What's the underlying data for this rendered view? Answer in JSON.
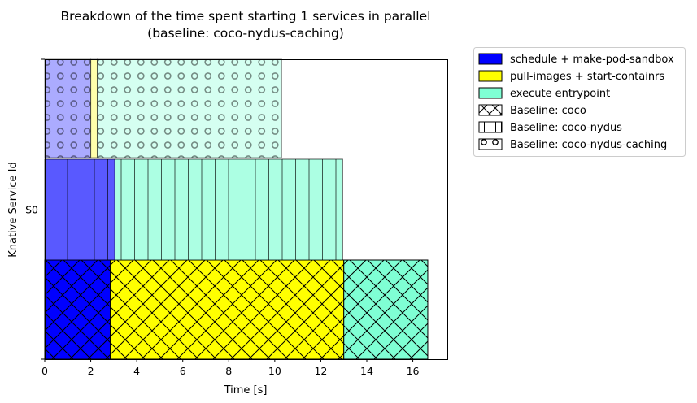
{
  "chart_data": {
    "type": "bar",
    "orientation": "horizontal",
    "title": "Breakdown of the time spent starting 1 services in parallel",
    "subtitle": "(baseline: coco-nydus-caching)",
    "xlabel": "Time [s]",
    "ylabel": "Knative Service Id",
    "xlim": [
      0,
      17.5
    ],
    "xticks": [
      "0",
      "2",
      "4",
      "6",
      "8",
      "10",
      "12",
      "14",
      "16"
    ],
    "yticks": [
      "S0"
    ],
    "grid": false,
    "legend_position": "outside-top-right",
    "legend": [
      {
        "label": "schedule + make-pod-sandbox",
        "kind": "color",
        "color": "#0000ff"
      },
      {
        "label": "pull-images + start-containrs",
        "kind": "color",
        "color": "#ffff00"
      },
      {
        "label": "execute entrypoint",
        "kind": "color",
        "color": "#7fffd4"
      },
      {
        "label": "Baseline: coco",
        "kind": "hatch",
        "hatch": "cross"
      },
      {
        "label": "Baseline: coco-nydus",
        "kind": "hatch",
        "hatch": "vertical"
      },
      {
        "label": "Baseline: coco-nydus-caching",
        "kind": "hatch",
        "hatch": "circles"
      }
    ],
    "series": [
      {
        "name": "Baseline: coco",
        "hatch": "cross",
        "opacity": 1.0,
        "segments": [
          {
            "label": "schedule + make-pod-sandbox",
            "start": 0,
            "end": 2.85,
            "color": "#0000ff"
          },
          {
            "label": "pull-images + start-containrs",
            "start": 2.85,
            "end": 13.0,
            "color": "#ffff00"
          },
          {
            "label": "execute entrypoint",
            "start": 13.0,
            "end": 16.65,
            "color": "#7fffd4"
          }
        ]
      },
      {
        "name": "Baseline: coco-nydus",
        "hatch": "vertical",
        "opacity": 0.65,
        "segments": [
          {
            "label": "schedule + make-pod-sandbox",
            "start": 0,
            "end": 3.05,
            "color": "#0000ff"
          },
          {
            "label": "pull-images + start-containrs",
            "start": 3.05,
            "end": 3.05,
            "color": "#ffff00"
          },
          {
            "label": "execute entrypoint",
            "start": 3.05,
            "end": 12.95,
            "color": "#7fffd4"
          }
        ]
      },
      {
        "name": "Baseline: coco-nydus-caching",
        "hatch": "circles",
        "opacity": 0.33,
        "segments": [
          {
            "label": "schedule + make-pod-sandbox",
            "start": 0,
            "end": 2.0,
            "color": "#0000ff"
          },
          {
            "label": "pull-images + start-containrs",
            "start": 2.0,
            "end": 2.28,
            "color": "#ffff00"
          },
          {
            "label": "execute entrypoint",
            "start": 2.28,
            "end": 10.3,
            "color": "#7fffd4"
          }
        ]
      }
    ]
  }
}
